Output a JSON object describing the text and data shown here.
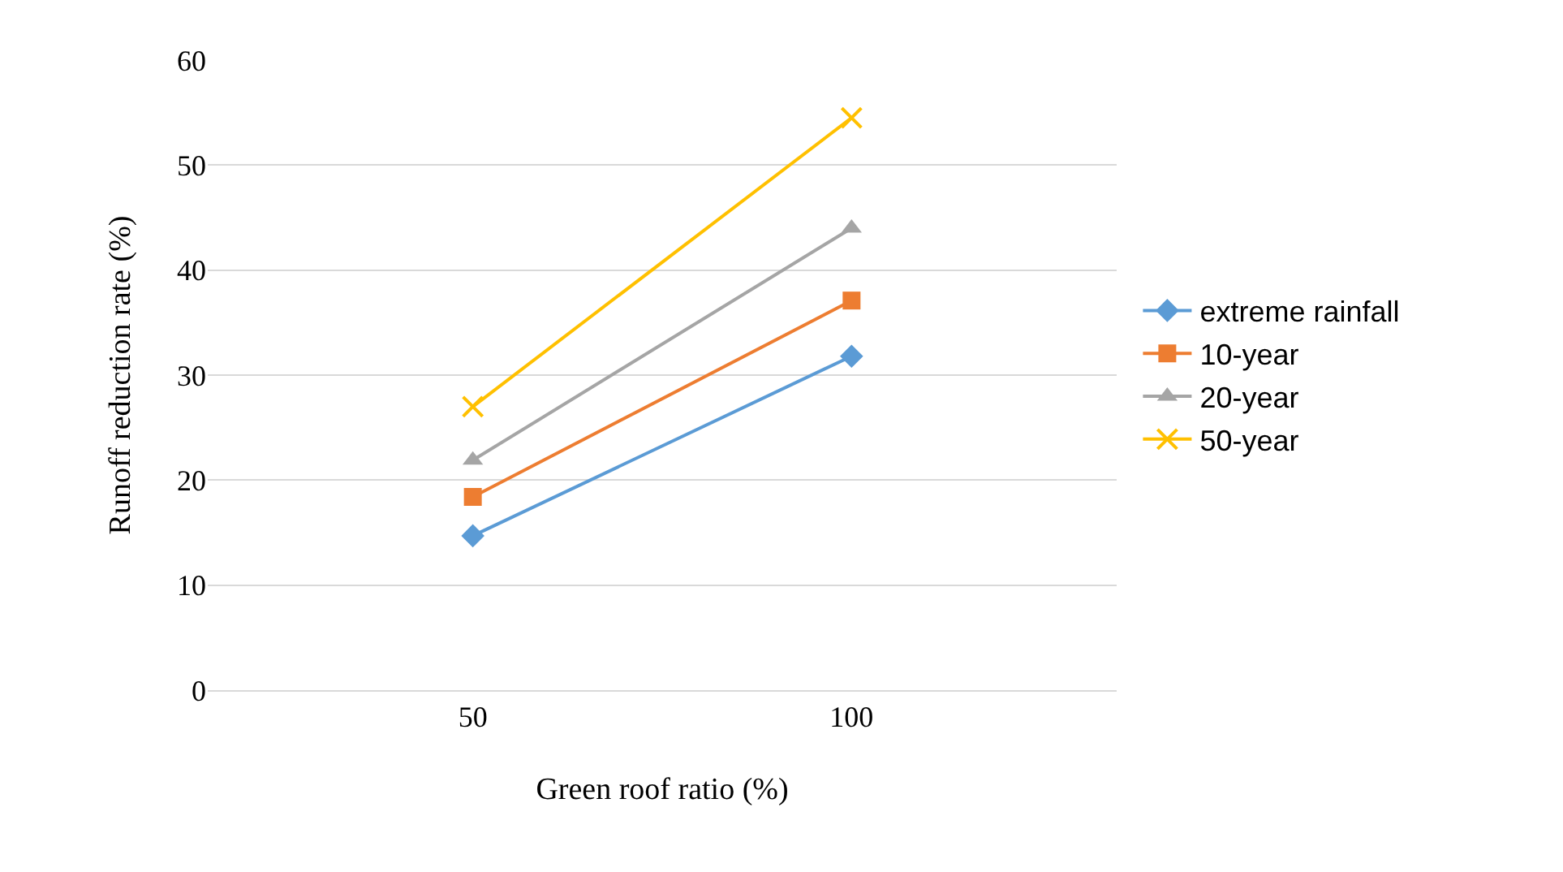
{
  "chart_data": {
    "type": "line",
    "xlabel": "Green roof ratio (%)",
    "ylabel": "Runoff reduction rate (%)",
    "categories": [
      "50",
      "100"
    ],
    "series": [
      {
        "name": "extreme rainfall",
        "color": "#5b9bd5",
        "marker": "diamond",
        "values": [
          14.7,
          31.8
        ]
      },
      {
        "name": "10-year",
        "color": "#ed7d31",
        "marker": "square",
        "values": [
          18.4,
          37.1
        ]
      },
      {
        "name": "20-year",
        "color": "#a5a5a5",
        "marker": "triangle",
        "values": [
          21.9,
          44.0
        ]
      },
      {
        "name": "50-year",
        "color": "#ffc000",
        "marker": "cross",
        "values": [
          27.0,
          54.5
        ]
      }
    ],
    "ylim": [
      0,
      60
    ],
    "yticks": [
      0,
      10,
      20,
      30,
      40,
      50,
      60
    ],
    "grid": "y",
    "legend": "right"
  }
}
